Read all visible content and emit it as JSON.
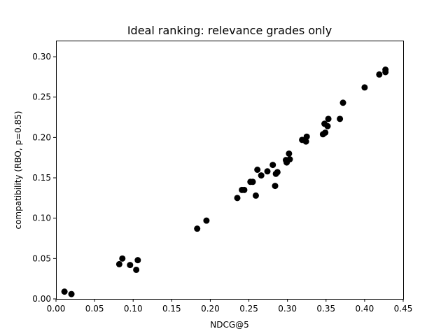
{
  "chart_data": {
    "type": "scatter",
    "title": "Ideal ranking: relevance grades only",
    "xlabel": "NDCG@5",
    "ylabel": "compatibility (RBO, p=0.85)",
    "xlim": [
      0.0,
      0.45
    ],
    "ylim": [
      0.0,
      0.32
    ],
    "xticks": [
      0.0,
      0.05,
      0.1,
      0.15,
      0.2,
      0.25,
      0.3,
      0.35,
      0.4,
      0.45
    ],
    "xtick_labels": [
      "0.00",
      "0.05",
      "0.10",
      "0.15",
      "0.20",
      "0.25",
      "0.30",
      "0.35",
      "0.40",
      "0.45"
    ],
    "yticks": [
      0.0,
      0.05,
      0.1,
      0.15,
      0.2,
      0.25,
      0.3
    ],
    "ytick_labels": [
      "0.00",
      "0.05",
      "0.10",
      "0.15",
      "0.20",
      "0.25",
      "0.30"
    ],
    "grid": false,
    "marker_color": "#000000",
    "x": [
      0.011,
      0.02,
      0.082,
      0.086,
      0.096,
      0.104,
      0.106,
      0.183,
      0.195,
      0.235,
      0.241,
      0.244,
      0.252,
      0.255,
      0.259,
      0.261,
      0.266,
      0.274,
      0.281,
      0.284,
      0.285,
      0.287,
      0.298,
      0.299,
      0.302,
      0.303,
      0.319,
      0.324,
      0.325,
      0.346,
      0.348,
      0.349,
      0.352,
      0.353,
      0.368,
      0.372,
      0.4,
      0.419,
      0.427,
      0.427
    ],
    "y": [
      0.009,
      0.006,
      0.043,
      0.05,
      0.042,
      0.036,
      0.048,
      0.087,
      0.097,
      0.125,
      0.135,
      0.135,
      0.145,
      0.145,
      0.128,
      0.16,
      0.153,
      0.158,
      0.166,
      0.14,
      0.155,
      0.157,
      0.172,
      0.169,
      0.18,
      0.173,
      0.197,
      0.195,
      0.201,
      0.204,
      0.217,
      0.206,
      0.214,
      0.223,
      0.223,
      0.243,
      0.262,
      0.278,
      0.281,
      0.284
    ]
  }
}
